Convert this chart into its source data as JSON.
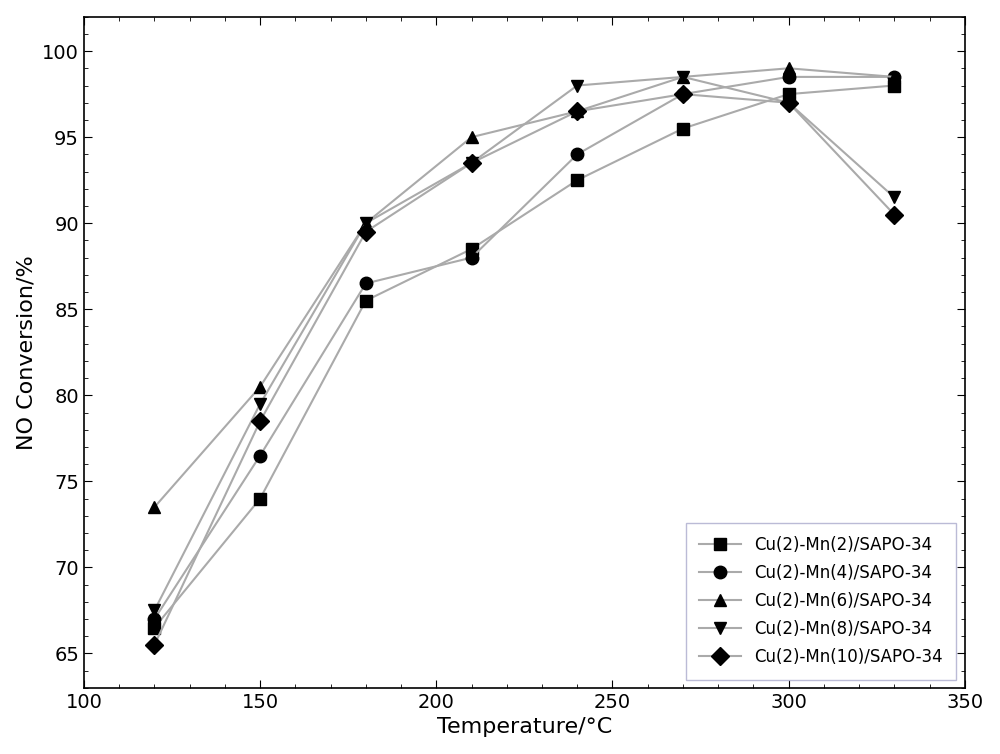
{
  "series": [
    {
      "label": "Cu(2)-Mn(2)/SAPO-34",
      "marker": "s",
      "x": [
        120,
        150,
        180,
        210,
        240,
        270,
        300,
        330
      ],
      "y": [
        66.5,
        74.0,
        85.5,
        88.5,
        92.5,
        95.5,
        97.5,
        98.0
      ]
    },
    {
      "label": "Cu(2)-Mn(4)/SAPO-34",
      "marker": "o",
      "x": [
        120,
        150,
        180,
        210,
        240,
        270,
        300,
        330
      ],
      "y": [
        67.0,
        76.5,
        86.5,
        88.0,
        94.0,
        97.5,
        98.5,
        98.5
      ]
    },
    {
      "label": "Cu(2)-Mn(6)/SAPO-34",
      "marker": "^",
      "x": [
        120,
        150,
        180,
        210,
        240,
        270,
        300,
        330
      ],
      "y": [
        73.5,
        80.5,
        90.0,
        95.0,
        96.5,
        98.5,
        99.0,
        98.5
      ]
    },
    {
      "label": "Cu(2)-Mn(8)/SAPO-34",
      "marker": "v",
      "x": [
        120,
        150,
        180,
        210,
        240,
        270,
        300,
        330
      ],
      "y": [
        67.5,
        79.5,
        90.0,
        93.5,
        98.0,
        98.5,
        97.0,
        91.5
      ]
    },
    {
      "label": "Cu(2)-Mn(10)/SAPO-34",
      "marker": "D",
      "x": [
        120,
        150,
        180,
        210,
        240,
        270,
        300,
        330
      ],
      "y": [
        65.5,
        78.5,
        89.5,
        93.5,
        96.5,
        97.5,
        97.0,
        90.5
      ]
    }
  ],
  "xlabel": "Temperature/°C",
  "ylabel": "NO Conversion/%",
  "xlim": [
    100,
    350
  ],
  "ylim": [
    63,
    102
  ],
  "xticks": [
    100,
    150,
    200,
    250,
    300,
    350
  ],
  "yticks": [
    65,
    70,
    75,
    80,
    85,
    90,
    95,
    100
  ],
  "legend_loc": "lower right",
  "line_color": "#aaaaaa",
  "marker_color": "#000000",
  "legend_edge_color": "#aaaacc",
  "figsize": [
    10.0,
    7.54
  ],
  "dpi": 100,
  "xlabel_fontsize": 16,
  "ylabel_fontsize": 16,
  "tick_labelsize": 14,
  "legend_fontsize": 12,
  "marker_size": 9,
  "line_width": 1.5
}
